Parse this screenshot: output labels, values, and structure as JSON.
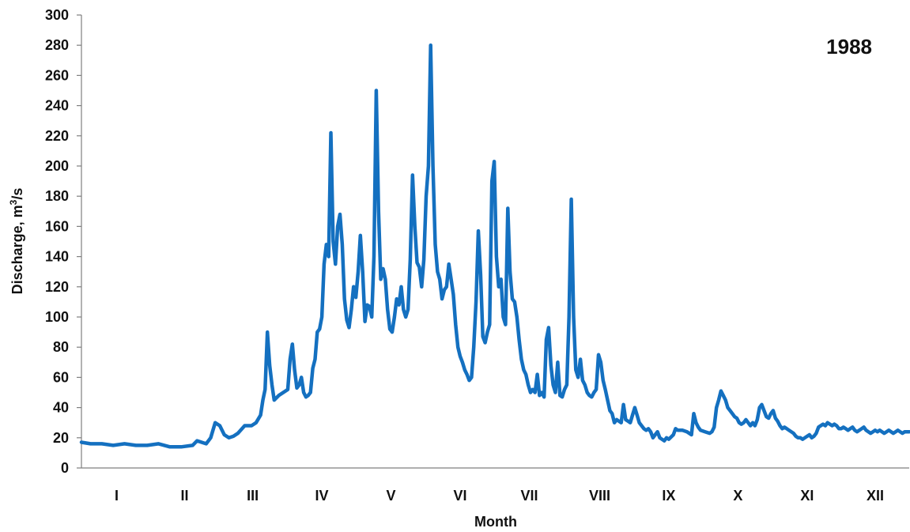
{
  "chart_data": {
    "type": "line",
    "annotation": "1988",
    "xlabel": "Month",
    "ylabel_prefix": "Discharge, m",
    "ylabel_sup": "3",
    "ylabel_suffix": "/s",
    "ylim": [
      0,
      300
    ],
    "yticks": [
      0,
      20,
      40,
      60,
      80,
      100,
      120,
      140,
      160,
      180,
      200,
      220,
      240,
      260,
      280,
      300
    ],
    "xlim": [
      1,
      366
    ],
    "months": [
      {
        "label": "I",
        "start": 1,
        "end": 32
      },
      {
        "label": "II",
        "start": 32,
        "end": 61
      },
      {
        "label": "III",
        "start": 61,
        "end": 92
      },
      {
        "label": "IV",
        "start": 92,
        "end": 122
      },
      {
        "label": "V",
        "start": 122,
        "end": 153
      },
      {
        "label": "VI",
        "start": 153,
        "end": 183
      },
      {
        "label": "VII",
        "start": 183,
        "end": 214
      },
      {
        "label": "VIII",
        "start": 214,
        "end": 245
      },
      {
        "label": "IX",
        "start": 245,
        "end": 275
      },
      {
        "label": "X",
        "start": 275,
        "end": 306
      },
      {
        "label": "XI",
        "start": 306,
        "end": 336
      },
      {
        "label": "XII",
        "start": 336,
        "end": 366
      }
    ],
    "line_color": "#1470C0",
    "series": [
      {
        "values": [
          [
            1,
            17
          ],
          [
            5,
            16
          ],
          [
            10,
            16
          ],
          [
            15,
            15
          ],
          [
            20,
            16
          ],
          [
            25,
            15
          ],
          [
            30,
            15
          ],
          [
            35,
            16
          ],
          [
            40,
            14
          ],
          [
            45,
            14
          ],
          [
            50,
            15
          ],
          [
            52,
            18
          ],
          [
            54,
            17
          ],
          [
            56,
            16
          ],
          [
            58,
            20
          ],
          [
            60,
            30
          ],
          [
            62,
            28
          ],
          [
            64,
            22
          ],
          [
            66,
            20
          ],
          [
            68,
            21
          ],
          [
            70,
            23
          ],
          [
            73,
            28
          ],
          [
            76,
            28
          ],
          [
            78,
            30
          ],
          [
            80,
            35
          ],
          [
            81,
            45
          ],
          [
            82,
            52
          ],
          [
            83,
            90
          ],
          [
            84,
            68
          ],
          [
            85,
            55
          ],
          [
            86,
            45
          ],
          [
            88,
            48
          ],
          [
            90,
            50
          ],
          [
            92,
            52
          ],
          [
            93,
            72
          ],
          [
            94,
            82
          ],
          [
            95,
            65
          ],
          [
            96,
            53
          ],
          [
            97,
            55
          ],
          [
            98,
            60
          ],
          [
            99,
            50
          ],
          [
            100,
            47
          ],
          [
            101,
            48
          ],
          [
            102,
            50
          ],
          [
            103,
            66
          ],
          [
            104,
            72
          ],
          [
            105,
            90
          ],
          [
            106,
            92
          ],
          [
            107,
            100
          ],
          [
            108,
            135
          ],
          [
            109,
            148
          ],
          [
            110,
            140
          ],
          [
            111,
            222
          ],
          [
            112,
            150
          ],
          [
            113,
            135
          ],
          [
            114,
            160
          ],
          [
            115,
            168
          ],
          [
            116,
            148
          ],
          [
            117,
            112
          ],
          [
            118,
            98
          ],
          [
            119,
            93
          ],
          [
            120,
            105
          ],
          [
            121,
            120
          ],
          [
            122,
            113
          ],
          [
            123,
            130
          ],
          [
            124,
            154
          ],
          [
            125,
            130
          ],
          [
            126,
            97
          ],
          [
            127,
            108
          ],
          [
            128,
            107
          ],
          [
            129,
            100
          ],
          [
            130,
            140
          ],
          [
            131,
            250
          ],
          [
            132,
            170
          ],
          [
            133,
            125
          ],
          [
            134,
            132
          ],
          [
            135,
            125
          ],
          [
            136,
            105
          ],
          [
            137,
            92
          ],
          [
            138,
            90
          ],
          [
            139,
            100
          ],
          [
            140,
            112
          ],
          [
            141,
            108
          ],
          [
            142,
            120
          ],
          [
            143,
            105
          ],
          [
            144,
            100
          ],
          [
            145,
            105
          ],
          [
            146,
            138
          ],
          [
            147,
            194
          ],
          [
            148,
            160
          ],
          [
            149,
            136
          ],
          [
            150,
            133
          ],
          [
            151,
            120
          ],
          [
            152,
            138
          ],
          [
            153,
            180
          ],
          [
            154,
            200
          ],
          [
            155,
            280
          ],
          [
            156,
            200
          ],
          [
            157,
            148
          ],
          [
            158,
            130
          ],
          [
            159,
            125
          ],
          [
            160,
            112
          ],
          [
            161,
            118
          ],
          [
            162,
            120
          ],
          [
            163,
            135
          ],
          [
            164,
            125
          ],
          [
            165,
            115
          ],
          [
            166,
            95
          ],
          [
            167,
            80
          ],
          [
            168,
            74
          ],
          [
            169,
            70
          ],
          [
            170,
            65
          ],
          [
            171,
            62
          ],
          [
            172,
            58
          ],
          [
            173,
            60
          ],
          [
            174,
            80
          ],
          [
            175,
            110
          ],
          [
            176,
            157
          ],
          [
            177,
            128
          ],
          [
            178,
            87
          ],
          [
            179,
            83
          ],
          [
            180,
            90
          ],
          [
            181,
            95
          ],
          [
            182,
            190
          ],
          [
            183,
            203
          ],
          [
            184,
            140
          ],
          [
            185,
            120
          ],
          [
            186,
            125
          ],
          [
            187,
            100
          ],
          [
            188,
            95
          ],
          [
            189,
            172
          ],
          [
            190,
            130
          ],
          [
            191,
            112
          ],
          [
            192,
            110
          ],
          [
            193,
            100
          ],
          [
            194,
            85
          ],
          [
            195,
            72
          ],
          [
            196,
            65
          ],
          [
            197,
            62
          ],
          [
            198,
            55
          ],
          [
            199,
            50
          ],
          [
            200,
            52
          ],
          [
            201,
            50
          ],
          [
            202,
            62
          ],
          [
            203,
            48
          ],
          [
            204,
            50
          ],
          [
            205,
            47
          ],
          [
            206,
            85
          ],
          [
            207,
            93
          ],
          [
            208,
            68
          ],
          [
            209,
            55
          ],
          [
            210,
            50
          ],
          [
            211,
            70
          ],
          [
            212,
            48
          ],
          [
            213,
            47
          ],
          [
            214,
            52
          ],
          [
            215,
            55
          ],
          [
            216,
            100
          ],
          [
            217,
            178
          ],
          [
            218,
            100
          ],
          [
            219,
            65
          ],
          [
            220,
            60
          ],
          [
            221,
            72
          ],
          [
            222,
            58
          ],
          [
            223,
            55
          ],
          [
            224,
            50
          ],
          [
            225,
            48
          ],
          [
            226,
            47
          ],
          [
            227,
            50
          ],
          [
            228,
            52
          ],
          [
            229,
            75
          ],
          [
            230,
            70
          ],
          [
            231,
            58
          ],
          [
            232,
            52
          ],
          [
            233,
            45
          ],
          [
            234,
            38
          ],
          [
            235,
            36
          ],
          [
            236,
            30
          ],
          [
            237,
            32
          ],
          [
            238,
            31
          ],
          [
            239,
            30
          ],
          [
            240,
            42
          ],
          [
            241,
            32
          ],
          [
            242,
            31
          ],
          [
            243,
            30
          ],
          [
            244,
            35
          ],
          [
            245,
            40
          ],
          [
            246,
            35
          ],
          [
            247,
            30
          ],
          [
            248,
            28
          ],
          [
            249,
            26
          ],
          [
            250,
            25
          ],
          [
            251,
            26
          ],
          [
            252,
            24
          ],
          [
            253,
            20
          ],
          [
            254,
            22
          ],
          [
            255,
            24
          ],
          [
            256,
            20
          ],
          [
            257,
            19
          ],
          [
            258,
            18
          ],
          [
            259,
            20
          ],
          [
            260,
            19
          ],
          [
            262,
            22
          ],
          [
            263,
            26
          ],
          [
            264,
            25
          ],
          [
            266,
            25
          ],
          [
            268,
            24
          ],
          [
            270,
            22
          ],
          [
            271,
            36
          ],
          [
            272,
            30
          ],
          [
            273,
            27
          ],
          [
            274,
            25
          ],
          [
            276,
            24
          ],
          [
            278,
            23
          ],
          [
            279,
            24
          ],
          [
            280,
            27
          ],
          [
            281,
            40
          ],
          [
            282,
            45
          ],
          [
            283,
            51
          ],
          [
            284,
            48
          ],
          [
            285,
            45
          ],
          [
            286,
            40
          ],
          [
            287,
            38
          ],
          [
            288,
            36
          ],
          [
            289,
            34
          ],
          [
            290,
            33
          ],
          [
            291,
            30
          ],
          [
            292,
            29
          ],
          [
            293,
            30
          ],
          [
            294,
            32
          ],
          [
            295,
            30
          ],
          [
            296,
            28
          ],
          [
            297,
            30
          ],
          [
            298,
            28
          ],
          [
            299,
            32
          ],
          [
            300,
            40
          ],
          [
            301,
            42
          ],
          [
            302,
            38
          ],
          [
            303,
            34
          ],
          [
            304,
            33
          ],
          [
            305,
            36
          ],
          [
            306,
            38
          ],
          [
            307,
            33
          ],
          [
            308,
            31
          ],
          [
            309,
            28
          ],
          [
            310,
            26
          ],
          [
            311,
            27
          ],
          [
            312,
            26
          ],
          [
            313,
            25
          ],
          [
            314,
            24
          ],
          [
            315,
            23
          ],
          [
            316,
            21
          ],
          [
            317,
            20
          ],
          [
            318,
            20
          ],
          [
            319,
            19
          ],
          [
            320,
            20
          ],
          [
            321,
            21
          ],
          [
            322,
            22
          ],
          [
            323,
            20
          ],
          [
            324,
            21
          ],
          [
            325,
            23
          ],
          [
            326,
            27
          ],
          [
            327,
            28
          ],
          [
            328,
            29
          ],
          [
            329,
            28
          ],
          [
            330,
            30
          ],
          [
            331,
            29
          ],
          [
            332,
            28
          ],
          [
            333,
            29
          ],
          [
            334,
            28
          ],
          [
            335,
            26
          ],
          [
            336,
            26
          ],
          [
            337,
            27
          ],
          [
            338,
            26
          ],
          [
            339,
            25
          ],
          [
            340,
            26
          ],
          [
            341,
            27
          ],
          [
            342,
            25
          ],
          [
            343,
            24
          ],
          [
            344,
            25
          ],
          [
            345,
            26
          ],
          [
            346,
            27
          ],
          [
            347,
            25
          ],
          [
            348,
            24
          ],
          [
            349,
            23
          ],
          [
            350,
            24
          ],
          [
            351,
            25
          ],
          [
            352,
            24
          ],
          [
            353,
            25
          ],
          [
            354,
            24
          ],
          [
            355,
            23
          ],
          [
            356,
            24
          ],
          [
            357,
            25
          ],
          [
            358,
            24
          ],
          [
            359,
            23
          ],
          [
            360,
            24
          ],
          [
            361,
            25
          ],
          [
            362,
            24
          ],
          [
            363,
            23
          ],
          [
            364,
            24
          ],
          [
            365,
            24
          ],
          [
            366,
            24
          ]
        ]
      }
    ]
  }
}
